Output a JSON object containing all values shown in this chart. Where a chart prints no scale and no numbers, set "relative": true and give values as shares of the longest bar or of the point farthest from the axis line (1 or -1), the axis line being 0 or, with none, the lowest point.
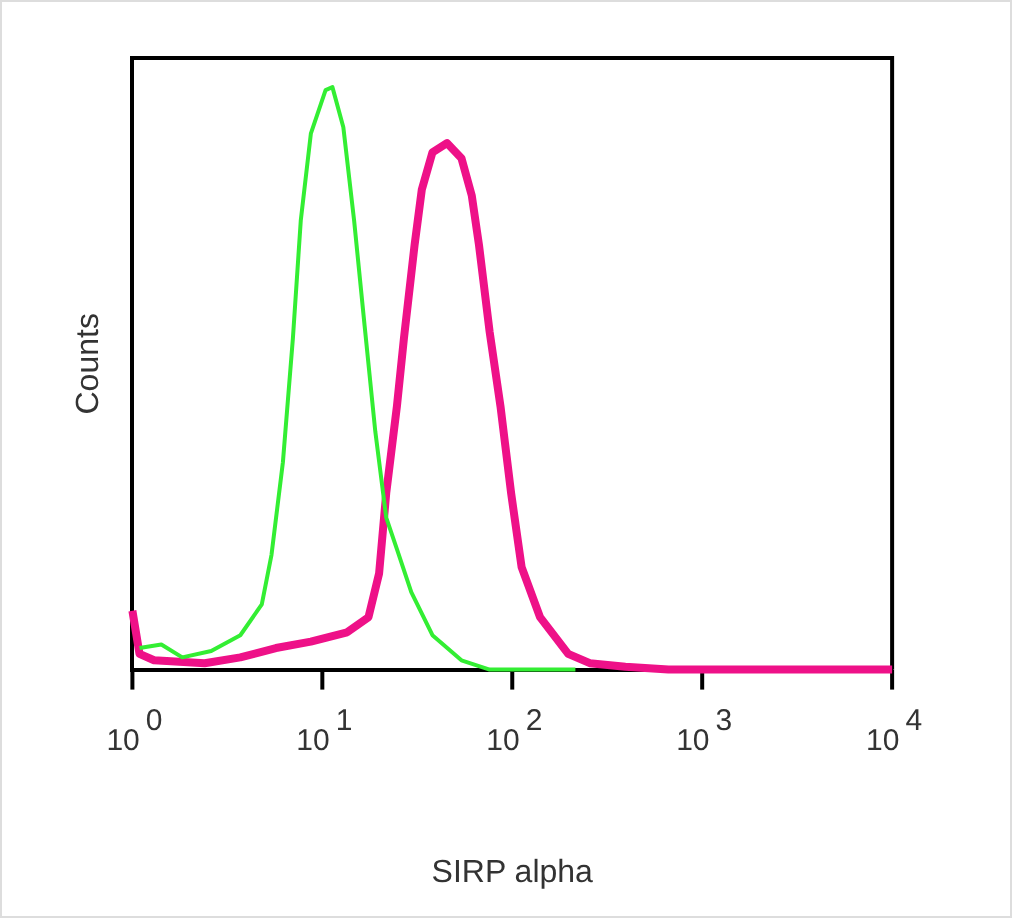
{
  "chart_data": {
    "type": "line",
    "xlabel": "SIRP alpha",
    "ylabel": "Counts",
    "log": "x",
    "relative": true,
    "legend": false,
    "grid": false,
    "marker": "none",
    "xlim": [
      1,
      10000
    ],
    "xticks": [
      {
        "value": 1,
        "label": "10$^{0}$"
      },
      {
        "value": 10,
        "label": "10$^{1}$"
      },
      {
        "value": 100,
        "label": "10$^{2}$"
      },
      {
        "value": 1000,
        "label": "10$^{3}$"
      },
      {
        "value": 10000,
        "label": "10$^{4}$"
      }
    ],
    "series": [
      {
        "color": "#33ee33",
        "x": [
          1.09,
          1.42,
          1.83,
          2.6,
          3.7,
          4.8,
          5.4,
          6.2,
          7.0,
          7.7,
          8.7,
          10.4,
          11.3,
          12.9,
          14.7,
          16.7,
          19,
          21.7,
          24.7,
          29.4,
          38,
          54,
          76,
          117,
          215
        ],
        "values": [
          0.037,
          0.043,
          0.021,
          0.032,
          0.059,
          0.112,
          0.197,
          0.356,
          0.569,
          0.771,
          0.92,
          0.995,
          1,
          0.931,
          0.771,
          0.59,
          0.409,
          0.261,
          0.207,
          0.133,
          0.059,
          0.016,
          0,
          0,
          0
        ]
      },
      {
        "color": "#ee1188",
        "x": [
          1,
          1.09,
          1.3,
          2.4,
          3.7,
          5.7,
          8.7,
          13.5,
          17.5,
          19.9,
          21.7,
          24.7,
          26.9,
          30.6,
          33.4,
          38,
          45.3,
          54,
          61.2,
          66.8,
          76,
          86.7,
          98.6,
          112,
          140,
          197,
          256,
          394,
          664,
          10000
        ],
        "values": [
          0.101,
          0.027,
          0.016,
          0.011,
          0.021,
          0.037,
          0.048,
          0.064,
          0.09,
          0.165,
          0.303,
          0.452,
          0.569,
          0.729,
          0.824,
          0.888,
          0.904,
          0.878,
          0.814,
          0.729,
          0.58,
          0.452,
          0.303,
          0.176,
          0.09,
          0.027,
          0.011,
          0.005,
          0,
          0
        ]
      }
    ]
  }
}
